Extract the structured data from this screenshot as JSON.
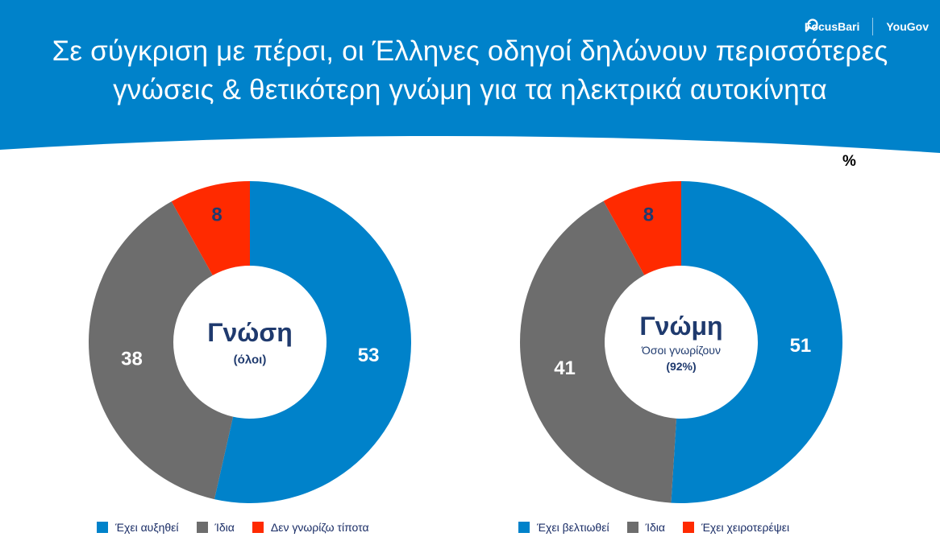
{
  "header": {
    "title_line1": "Σε σύγκριση με πέρσι, οι Έλληνες οδηγοί δηλώνουν περισσότερες",
    "title_line2": "γνώσεις & θετικότερη γνώμη για τα ηλεκτρικά αυτοκίνητα",
    "logo_focus": "FocusBari",
    "logo_yougov": "YouGov",
    "logo_icon": "search-magnifier-icon",
    "banner_color": "#0082CA"
  },
  "unit_label": "%",
  "colors": {
    "blue": "#0082CA",
    "gray": "#6D6D6D",
    "red": "#FF2A00",
    "navy": "#1F3A6E"
  },
  "chart_data": [
    {
      "type": "pie",
      "variant": "donut",
      "center_title": "Γνώση",
      "center_subtitle": "(όλοι)",
      "center_subtitle2": "",
      "categories": [
        "Έχει αυξηθεί",
        "Ίδια",
        "Δεν γνωρίζω τίποτα"
      ],
      "values": [
        53,
        38,
        8
      ],
      "colors": [
        "#0082CA",
        "#6D6D6D",
        "#FF2A00"
      ],
      "legend_placement": "bottom"
    },
    {
      "type": "pie",
      "variant": "donut",
      "center_title": "Γνώμη",
      "center_subtitle": "Όσοι γνωρίζουν",
      "center_subtitle2": "(92%)",
      "categories": [
        "Έχει βελτιωθεί",
        "Ίδια",
        "Έχει χειροτερέψει"
      ],
      "values": [
        51,
        41,
        8
      ],
      "colors": [
        "#0082CA",
        "#6D6D6D",
        "#FF2A00"
      ],
      "legend_placement": "bottom"
    }
  ]
}
